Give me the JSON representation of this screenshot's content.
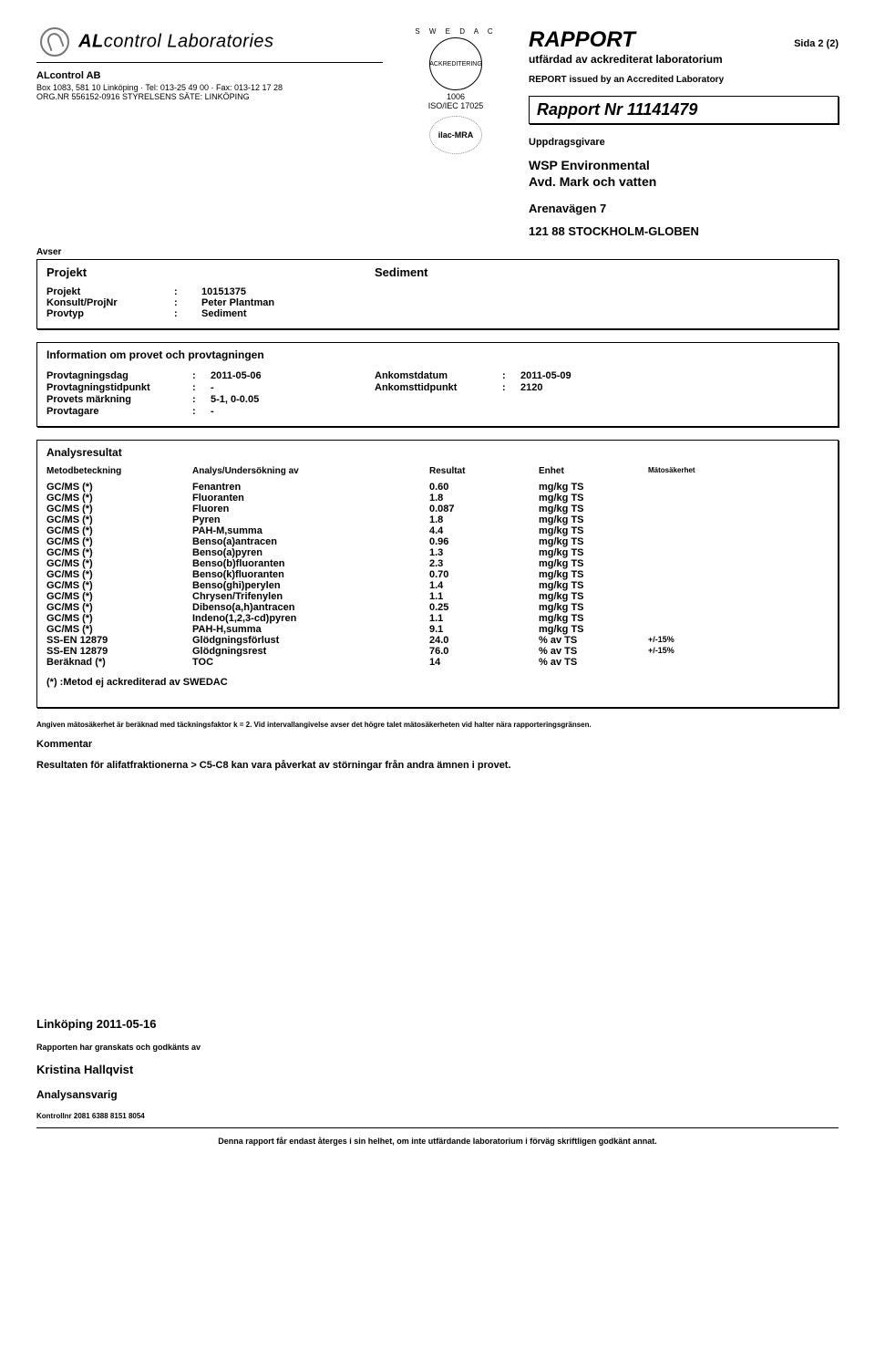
{
  "header": {
    "lab_name_prefix": "AL",
    "lab_name_mid": "control",
    "lab_name_suffix": " Laboratories",
    "company": "ALcontrol AB",
    "addr1": "Box 1083, 581 10  Linköping  ·  Tel: 013-25 49 00  ·  Fax: 013-12 17 28",
    "addr2": "ORG.NR 556152-0916  STYRELSENS SÄTE: LINKÖPING",
    "swedac_top": "S W E D A C",
    "swedac_mid": "ACKREDITERING",
    "acc_no": "1006",
    "acc_std": "ISO/IEC 17025",
    "ilac": "ilac-MRA",
    "rapport": "RAPPORT",
    "sida": "Sida  2 (2)",
    "issued_sv": "utfärdad av ackrediterat laboratorium",
    "issued_en": "REPORT issued by an Accredited Laboratory",
    "report_nr": "Rapport Nr 11141479",
    "uppdrag": "Uppdragsgivare",
    "client1": "WSP Environmental",
    "client2": "Avd. Mark och vatten",
    "client_addr1": "Arenavägen 7",
    "client_addr2": "121 88  STOCKHOLM-GLOBEN"
  },
  "avser": {
    "label": "Avser",
    "projekt_label": "Projekt",
    "projekt_value": "Sediment",
    "rows": [
      {
        "k": "Projekt",
        "v": "10151375"
      },
      {
        "k": "Konsult/ProjNr",
        "v": "Peter Plantman"
      },
      {
        "k": "Provtyp",
        "v": "Sediment"
      }
    ]
  },
  "info": {
    "title": "Information om provet och provtagningen",
    "left": [
      {
        "k": "Provtagningsdag",
        "v": "2011-05-06"
      },
      {
        "k": "Provtagningstidpunkt",
        "v": "-"
      },
      {
        "k": "Provets märkning",
        "v": "5-1, 0-0.05"
      },
      {
        "k": "Provtagare",
        "v": "-"
      }
    ],
    "right": [
      {
        "k": "Ankomstdatum",
        "v": "2011-05-09"
      },
      {
        "k": "Ankomsttidpunkt",
        "v": "2120"
      }
    ]
  },
  "analys": {
    "title": "Analysresultat",
    "head": [
      "Metodbeteckning",
      "Analys/Undersökning av",
      "Resultat",
      "Enhet",
      "Mätosäkerhet"
    ],
    "rows": [
      [
        "GC/MS (*)",
        "Fenantren",
        "0.60",
        "mg/kg TS",
        ""
      ],
      [
        "GC/MS (*)",
        "Fluoranten",
        "1.8",
        "mg/kg TS",
        ""
      ],
      [
        "GC/MS (*)",
        "Fluoren",
        "0.087",
        "mg/kg TS",
        ""
      ],
      [
        "GC/MS (*)",
        "Pyren",
        "1.8",
        "mg/kg TS",
        ""
      ],
      [
        "GC/MS (*)",
        "PAH-M,summa",
        "4.4",
        "mg/kg TS",
        ""
      ],
      [
        "GC/MS (*)",
        "Benso(a)antracen",
        "0.96",
        "mg/kg TS",
        ""
      ],
      [
        "GC/MS (*)",
        "Benso(a)pyren",
        "1.3",
        "mg/kg TS",
        ""
      ],
      [
        "GC/MS (*)",
        "Benso(b)fluoranten",
        "2.3",
        "mg/kg TS",
        ""
      ],
      [
        "GC/MS (*)",
        "Benso(k)fluoranten",
        "0.70",
        "mg/kg TS",
        ""
      ],
      [
        "GC/MS (*)",
        "Benso(ghi)perylen",
        "1.4",
        "mg/kg TS",
        ""
      ],
      [
        "GC/MS (*)",
        "Chrysen/Trifenylen",
        "1.1",
        "mg/kg TS",
        ""
      ],
      [
        "GC/MS (*)",
        "Dibenso(a,h)antracen",
        "0.25",
        "mg/kg TS",
        ""
      ],
      [
        "GC/MS (*)",
        "Indeno(1,2,3-cd)pyren",
        "1.1",
        "mg/kg TS",
        ""
      ],
      [
        "GC/MS (*)",
        "PAH-H,summa",
        "9.1",
        "mg/kg TS",
        ""
      ],
      [
        "SS-EN 12879",
        "Glödgningsförlust",
        "24.0",
        "% av TS",
        "+/-15%"
      ],
      [
        "SS-EN 12879",
        "Glödgningsrest",
        "76.0",
        "% av TS",
        "+/-15%"
      ],
      [
        "Beräknad (*)",
        "TOC",
        "14",
        "% av TS",
        ""
      ]
    ],
    "footnote": "(*) :Metod ej ackrediterad av SWEDAC"
  },
  "below": {
    "angiven": "Angiven mätosäkerhet är beräknad med täckningsfaktor k = 2. Vid intervallangivelse avser det högre talet mätosäkerheten vid halter nära rapporteringsgränsen.",
    "kommentar_label": "Kommentar",
    "kommentar_body": "Resultaten för alifatfraktionerna > C5-C8 kan vara påverkat av störningar från andra ämnen i provet."
  },
  "sign": {
    "city_date": "Linköping  2011-05-16",
    "reviewed": "Rapporten har granskats och godkänts av",
    "name": "Kristina Hallqvist",
    "role": "Analysansvarig",
    "ctrl": "Kontrollnr 2081 6388 8151 8054",
    "disclaimer": "Denna rapport får endast återges i sin helhet, om inte utfärdande laboratorium i förväg skriftligen godkänt annat."
  }
}
